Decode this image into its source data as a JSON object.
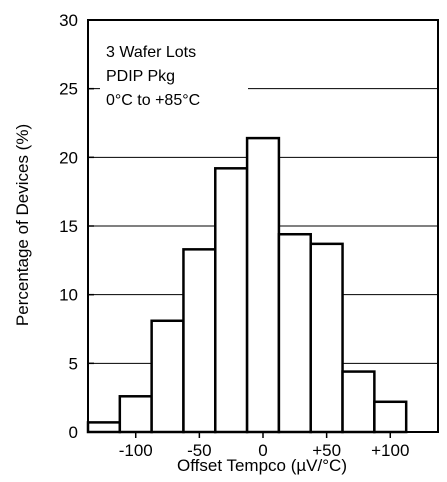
{
  "chart_data": {
    "type": "bar",
    "subtype": "histogram",
    "xlabel": "Offset Tempco (µV/°C)",
    "ylabel": "Percentage of Devices (%)",
    "ylim": [
      0,
      30
    ],
    "xlim": [
      -137.5,
      137.5
    ],
    "y_ticks": [
      0,
      5,
      10,
      15,
      20,
      25,
      30
    ],
    "x_ticks": [
      {
        "value": -100,
        "label": "-100"
      },
      {
        "value": -50,
        "label": "-50"
      },
      {
        "value": 0,
        "label": "0"
      },
      {
        "value": 50,
        "label": "+50"
      },
      {
        "value": 100,
        "label": "+100"
      }
    ],
    "grid": "horizontal",
    "bin_width": 25,
    "bins": [
      {
        "center": -125,
        "value": 0.7
      },
      {
        "center": -100,
        "value": 2.6
      },
      {
        "center": -75,
        "value": 8.1
      },
      {
        "center": -50,
        "value": 13.3
      },
      {
        "center": -25,
        "value": 19.2
      },
      {
        "center": 0,
        "value": 21.4
      },
      {
        "center": 25,
        "value": 14.4
      },
      {
        "center": 50,
        "value": 13.7
      },
      {
        "center": 75,
        "value": 4.4
      },
      {
        "center": 100,
        "value": 2.2
      }
    ],
    "annotation": [
      "3 Wafer Lots",
      "PDIP Pkg",
      "0°C to +85°C"
    ]
  }
}
